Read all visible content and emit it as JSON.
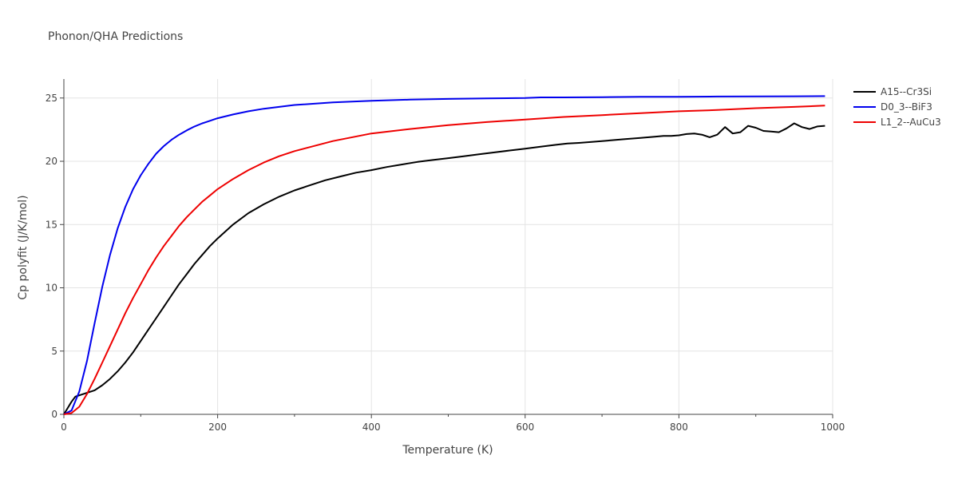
{
  "chart_data": {
    "type": "line",
    "title": "Phonon/QHA Predictions",
    "xlabel": "Temperature (K)",
    "ylabel": "Cp polyfit (J/K/mol)",
    "xlim": [
      0,
      1000
    ],
    "ylim": [
      0,
      26.5
    ],
    "xticks": [
      0,
      200,
      400,
      600,
      800,
      1000
    ],
    "yticks": [
      0,
      5,
      10,
      15,
      20,
      25
    ],
    "grid": true,
    "legend_position": "top-right",
    "series": [
      {
        "name": "A15--Cr3Si",
        "color": "#000000",
        "x": [
          0,
          5,
          10,
          15,
          20,
          30,
          40,
          50,
          60,
          70,
          80,
          90,
          100,
          110,
          120,
          130,
          140,
          150,
          160,
          170,
          180,
          190,
          200,
          220,
          240,
          260,
          280,
          300,
          320,
          340,
          360,
          380,
          400,
          420,
          440,
          460,
          480,
          500,
          520,
          540,
          560,
          580,
          600,
          620,
          640,
          655,
          670,
          690,
          710,
          730,
          750,
          770,
          780,
          790,
          800,
          810,
          820,
          830,
          840,
          850,
          860,
          870,
          880,
          890,
          900,
          910,
          920,
          930,
          940,
          950,
          960,
          970,
          980,
          990
        ],
        "y": [
          0,
          0.5,
          1.0,
          1.4,
          1.5,
          1.7,
          1.9,
          2.3,
          2.8,
          3.4,
          4.1,
          4.9,
          5.8,
          6.7,
          7.6,
          8.5,
          9.4,
          10.3,
          11.1,
          11.9,
          12.6,
          13.3,
          13.9,
          15.0,
          15.9,
          16.6,
          17.2,
          17.7,
          18.1,
          18.5,
          18.8,
          19.1,
          19.3,
          19.55,
          19.75,
          19.95,
          20.1,
          20.25,
          20.4,
          20.55,
          20.7,
          20.85,
          21.0,
          21.15,
          21.3,
          21.4,
          21.45,
          21.55,
          21.65,
          21.75,
          21.85,
          21.95,
          22.0,
          22.0,
          22.05,
          22.15,
          22.2,
          22.1,
          21.9,
          22.1,
          22.7,
          22.2,
          22.3,
          22.8,
          22.65,
          22.4,
          22.35,
          22.3,
          22.6,
          23.0,
          22.7,
          22.55,
          22.75,
          22.8
        ]
      },
      {
        "name": "D0_3--BiF3",
        "color": "#0000ee",
        "x": [
          0,
          10,
          20,
          30,
          40,
          50,
          60,
          70,
          80,
          90,
          100,
          110,
          120,
          130,
          140,
          150,
          160,
          170,
          180,
          190,
          200,
          220,
          240,
          260,
          280,
          300,
          350,
          400,
          450,
          500,
          550,
          600,
          620,
          650,
          700,
          750,
          800,
          850,
          900,
          950,
          990
        ],
        "y": [
          0,
          0.3,
          1.8,
          4.2,
          7.2,
          10.1,
          12.6,
          14.7,
          16.4,
          17.8,
          18.9,
          19.8,
          20.6,
          21.2,
          21.7,
          22.1,
          22.45,
          22.75,
          23.0,
          23.2,
          23.4,
          23.7,
          23.95,
          24.15,
          24.3,
          24.45,
          24.65,
          24.78,
          24.87,
          24.93,
          24.97,
          25.0,
          25.05,
          25.05,
          25.07,
          25.09,
          25.1,
          25.12,
          25.13,
          25.14,
          25.15
        ]
      },
      {
        "name": "L1_2--AuCu3",
        "color": "#ee0000",
        "x": [
          0,
          10,
          20,
          30,
          40,
          50,
          60,
          70,
          80,
          90,
          100,
          110,
          120,
          130,
          140,
          150,
          160,
          170,
          180,
          190,
          200,
          220,
          240,
          260,
          280,
          300,
          350,
          400,
          450,
          500,
          550,
          600,
          650,
          700,
          750,
          800,
          850,
          900,
          950,
          990
        ],
        "y": [
          0,
          0.1,
          0.6,
          1.6,
          2.8,
          4.1,
          5.4,
          6.7,
          8.0,
          9.2,
          10.3,
          11.4,
          12.4,
          13.3,
          14.1,
          14.9,
          15.6,
          16.2,
          16.8,
          17.3,
          17.8,
          18.6,
          19.3,
          19.9,
          20.4,
          20.8,
          21.6,
          22.2,
          22.55,
          22.85,
          23.1,
          23.3,
          23.5,
          23.65,
          23.8,
          23.95,
          24.05,
          24.2,
          24.3,
          24.4
        ]
      }
    ]
  }
}
